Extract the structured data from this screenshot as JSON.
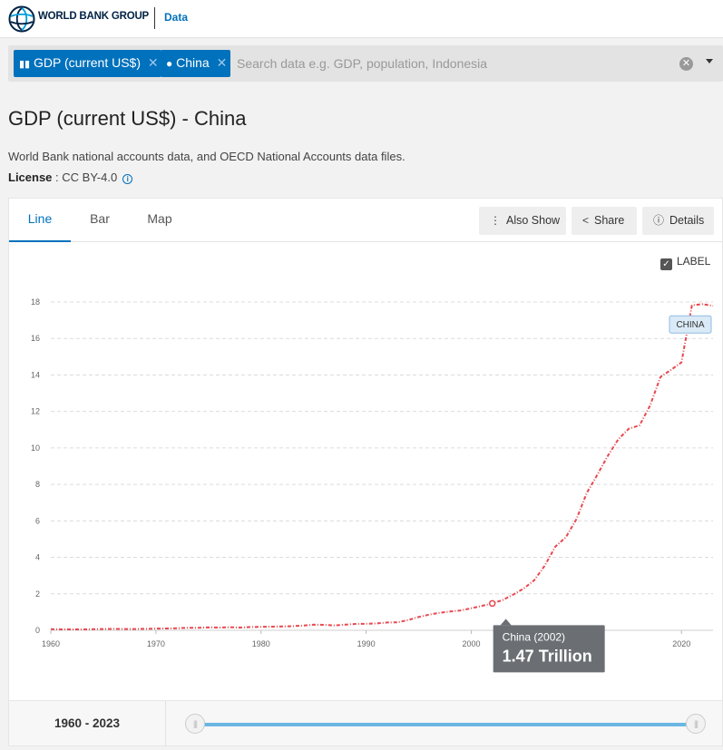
{
  "header": {
    "brand": "WORLD BANK GROUP",
    "data_link": "Data"
  },
  "search": {
    "chips": [
      {
        "label": "GDP (current US$)",
        "icon": "bar-chart-icon"
      },
      {
        "label": "China",
        "icon": "map-pin-icon"
      }
    ],
    "placeholder": "Search data e.g. GDP, population, Indonesia"
  },
  "page": {
    "title": "GDP (current US$) - China",
    "source": "World Bank national accounts data, and OECD National Accounts data files.",
    "license_label": "License",
    "license_value": " : CC BY-4.0"
  },
  "tabs": [
    "Line",
    "Bar",
    "Map"
  ],
  "active_tab": "Line",
  "toolbar": {
    "also_show": "Also Show",
    "share": "Share",
    "details": "Details"
  },
  "label_toggle": {
    "label": "LABEL",
    "checked": true
  },
  "chart_data": {
    "type": "line",
    "title": "",
    "xlabel": "",
    "ylabel": "",
    "ylim": [
      0,
      18
    ],
    "yticks": [
      0,
      2,
      4,
      6,
      8,
      10,
      12,
      14,
      16,
      18
    ],
    "xlim": [
      1960,
      2023
    ],
    "xticks": [
      1960,
      1970,
      1980,
      1990,
      2000,
      2010,
      2020
    ],
    "xtick_labels": [
      "1960",
      "1970",
      "1980",
      "1990",
      "2000",
      "",
      "2020"
    ],
    "grid": true,
    "color": "#e8484f",
    "series": [
      {
        "name": "CHINA",
        "x": [
          1960,
          1961,
          1962,
          1963,
          1964,
          1965,
          1966,
          1967,
          1968,
          1969,
          1970,
          1971,
          1972,
          1973,
          1974,
          1975,
          1976,
          1977,
          1978,
          1979,
          1980,
          1981,
          1982,
          1983,
          1984,
          1985,
          1986,
          1987,
          1988,
          1989,
          1990,
          1991,
          1992,
          1993,
          1994,
          1995,
          1996,
          1997,
          1998,
          1999,
          2000,
          2001,
          2002,
          2003,
          2004,
          2005,
          2006,
          2007,
          2008,
          2009,
          2010,
          2011,
          2012,
          2013,
          2014,
          2015,
          2016,
          2017,
          2018,
          2019,
          2020,
          2021,
          2022,
          2023
        ],
        "values": [
          0.06,
          0.05,
          0.05,
          0.05,
          0.06,
          0.07,
          0.08,
          0.07,
          0.07,
          0.08,
          0.09,
          0.1,
          0.11,
          0.14,
          0.14,
          0.16,
          0.15,
          0.17,
          0.15,
          0.18,
          0.19,
          0.2,
          0.21,
          0.23,
          0.26,
          0.31,
          0.3,
          0.27,
          0.31,
          0.35,
          0.36,
          0.38,
          0.43,
          0.44,
          0.56,
          0.73,
          0.86,
          0.96,
          1.03,
          1.09,
          1.21,
          1.34,
          1.47,
          1.66,
          1.96,
          2.29,
          2.75,
          3.55,
          4.59,
          5.1,
          6.09,
          7.55,
          8.53,
          9.57,
          10.48,
          11.06,
          11.23,
          12.31,
          13.89,
          14.28,
          14.69,
          17.82,
          17.88,
          17.79
        ]
      }
    ],
    "series_label": "CHINA",
    "tooltip": {
      "title": "China (2002)",
      "value": "1.47 Trillion",
      "x": 2002,
      "y": 1.47
    }
  },
  "range": {
    "start": "1960",
    "separator": " - ",
    "end": "2023"
  }
}
